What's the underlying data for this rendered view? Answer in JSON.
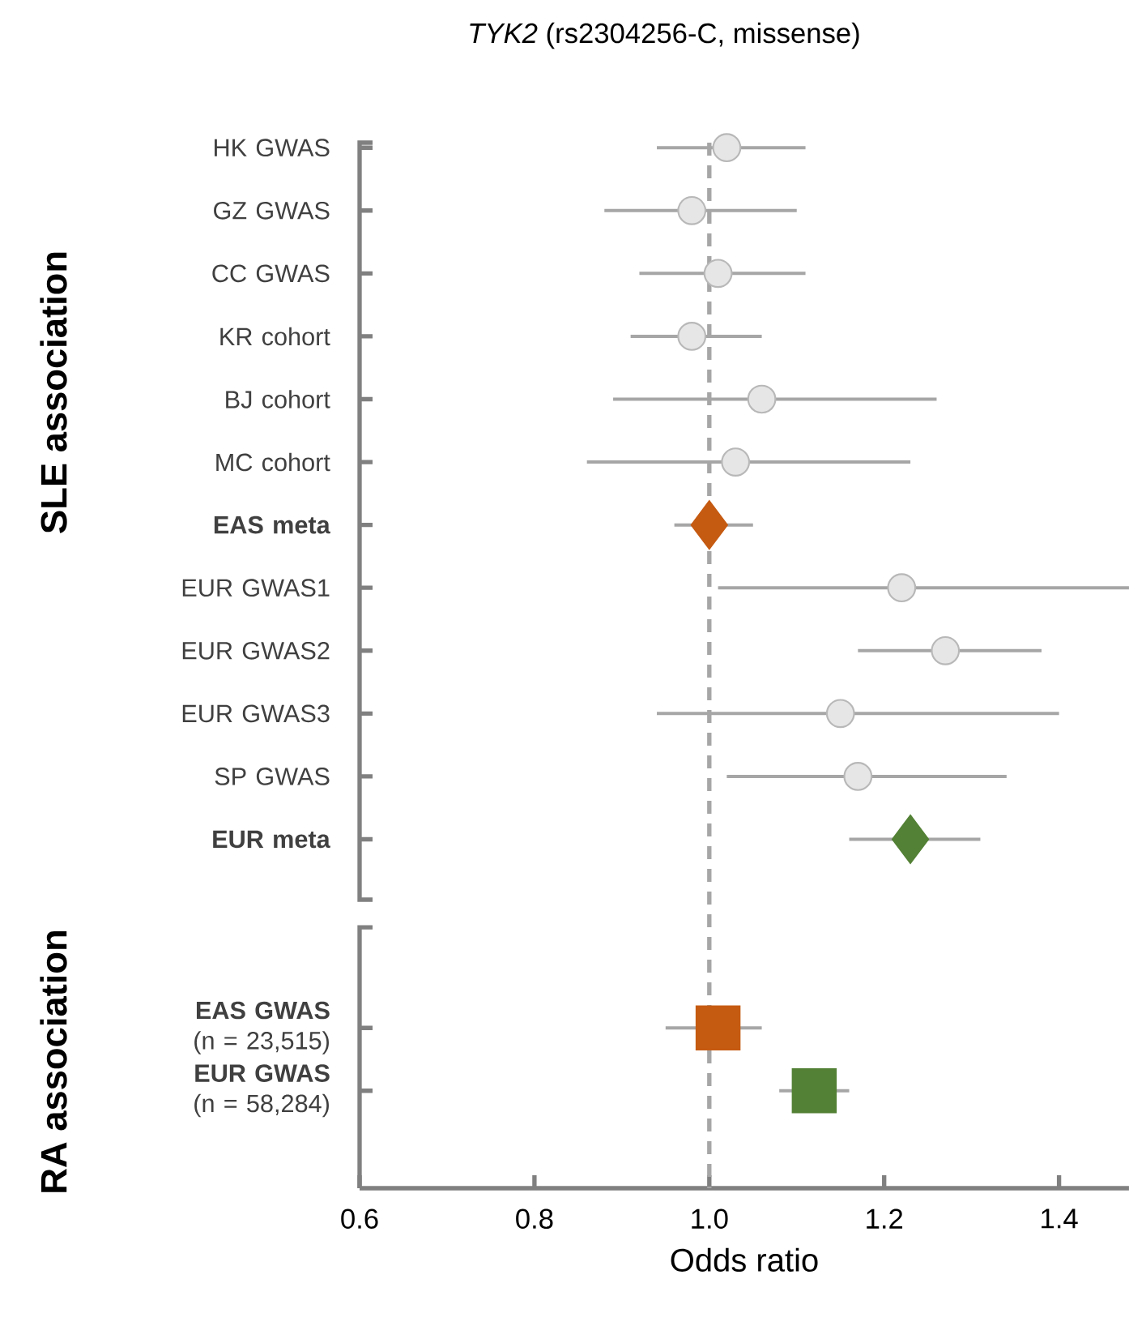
{
  "chart_data": {
    "type": "scatter",
    "orientation": "horizontal",
    "title": "*TYK2* (rs2304256-C, missense)",
    "xlabel": "Odds ratio",
    "categories": [
      "HK GWAS",
      "GZ GWAS",
      "CC GWAS",
      "KR cohort",
      "BJ cohort",
      "MC cohort",
      "**EAS meta**",
      "EUR GWAS1",
      "EUR GWAS2",
      "EUR GWAS3",
      "SP GWAS",
      "**EUR meta**",
      null,
      null,
      "**EAS GWAS** (n = 23,515)",
      "**EUR GWAS** (n = 58,284)"
    ],
    "xlim": [
      0.6,
      1.48
    ],
    "xticks": [
      {
        "value": 0.6,
        "label": "0.6"
      },
      {
        "value": 0.8,
        "label": "0.8"
      },
      {
        "value": 1.0,
        "label": "1.0"
      },
      {
        "value": 1.2,
        "label": "1.2"
      },
      {
        "value": 1.4,
        "label": "1.4"
      }
    ],
    "series": [
      {
        "color": "#e6e6e6",
        "marker": "circle",
        "values": [
          1.02,
          0.98,
          1.01,
          0.98,
          1.06,
          1.03,
          null,
          1.22,
          1.27,
          1.15,
          1.17,
          null,
          null,
          null,
          null,
          null
        ],
        "errors": [
          [
            0.94,
            1.11
          ],
          [
            0.88,
            1.1
          ],
          [
            0.92,
            1.11
          ],
          [
            0.91,
            1.06
          ],
          [
            0.89,
            1.26
          ],
          [
            0.86,
            1.23
          ],
          null,
          [
            1.01,
            1.48
          ],
          [
            1.17,
            1.38
          ],
          [
            0.94,
            1.4
          ],
          [
            1.02,
            1.34
          ],
          null,
          null,
          null,
          null,
          null
        ]
      },
      {
        "color": "#c55a11",
        "marker": "diamond",
        "values": [
          null,
          null,
          null,
          null,
          null,
          null,
          1.0,
          null,
          null,
          null,
          null,
          null,
          null,
          null,
          null,
          null
        ],
        "errors": [
          null,
          null,
          null,
          null,
          null,
          null,
          [
            0.96,
            1.05
          ],
          null,
          null,
          null,
          null,
          null,
          null,
          null,
          null,
          null
        ]
      },
      {
        "color": "#538135",
        "marker": "diamond",
        "values": [
          null,
          null,
          null,
          null,
          null,
          null,
          null,
          null,
          null,
          null,
          null,
          1.23,
          null,
          null,
          null,
          null
        ],
        "errors": [
          null,
          null,
          null,
          null,
          null,
          null,
          null,
          null,
          null,
          null,
          null,
          [
            1.16,
            1.31
          ],
          null,
          null,
          null,
          null
        ]
      },
      {
        "color": "#c55a11",
        "marker": "square",
        "values": [
          null,
          null,
          null,
          null,
          null,
          null,
          null,
          null,
          null,
          null,
          null,
          null,
          null,
          null,
          1.01,
          null
        ],
        "errors": [
          null,
          null,
          null,
          null,
          null,
          null,
          null,
          null,
          null,
          null,
          null,
          null,
          null,
          null,
          [
            0.95,
            1.06
          ],
          null
        ]
      },
      {
        "color": "#538135",
        "marker": "square",
        "values": [
          null,
          null,
          null,
          null,
          null,
          null,
          null,
          null,
          null,
          null,
          null,
          null,
          null,
          null,
          null,
          1.12
        ],
        "errors": [
          null,
          null,
          null,
          null,
          null,
          null,
          null,
          null,
          null,
          null,
          null,
          null,
          null,
          null,
          null,
          [
            1.08,
            1.16
          ]
        ]
      }
    ],
    "ref_lines": [
      {
        "axis": "x",
        "value": 1.0,
        "color": "#a6a6a6",
        "line_style": "dashed"
      }
    ],
    "annotations": [
      "SLE association",
      "RA association"
    ]
  }
}
